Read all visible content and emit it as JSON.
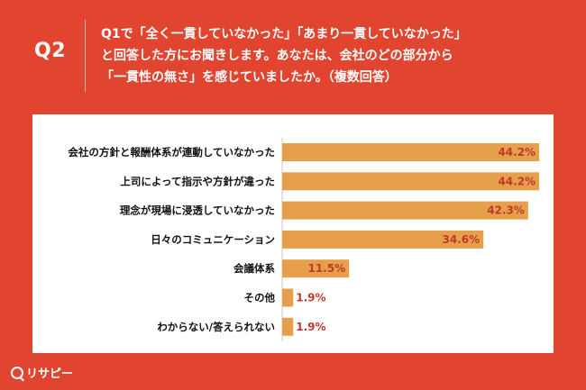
{
  "header": {
    "q_label": "Q2",
    "question_lines": [
      "Q1で「全く一貫していなかった」「あまり一貫していなかった」",
      "と回答した方にお聞きします。あなたは、会社のどの部分から",
      "「一貫性の無さ」を感じていましたか。（複数回答）"
    ]
  },
  "logo": {
    "text": "リサピー"
  },
  "colors": {
    "background": "#e2452f",
    "bar": "#e6a04b",
    "value_label": "#c0392b"
  },
  "chart_data": {
    "type": "bar",
    "orientation": "horizontal",
    "categories": [
      "会社の方針と報酬体系が連動していなかった",
      "上司によって指示や方針が違った",
      "理念が現場に浸透していなかった",
      "日々のコミュニケーション",
      "会議体系",
      "その他",
      "わからない/答えられない"
    ],
    "values": [
      44.2,
      44.2,
      42.3,
      34.6,
      11.5,
      1.9,
      1.9
    ],
    "value_labels": [
      "44.2%",
      "44.2%",
      "42.3%",
      "34.6%",
      "11.5%",
      "1.9%",
      "1.9%"
    ],
    "xlim": [
      0,
      50
    ],
    "grid": false,
    "legend": "none"
  }
}
